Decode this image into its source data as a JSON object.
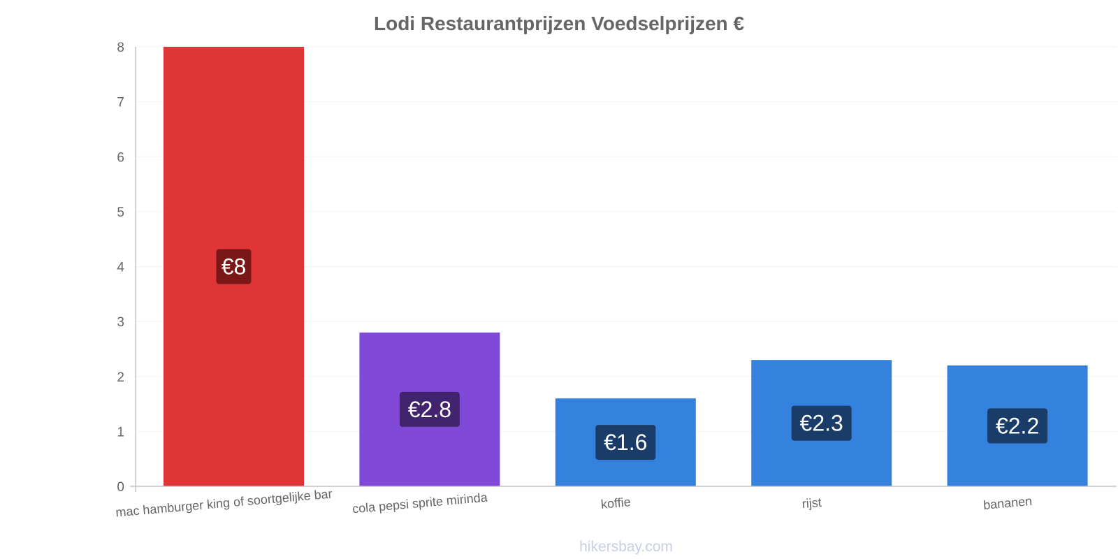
{
  "chart_data": {
    "type": "bar",
    "title": "Lodi Restaurantprijzen Voedselprijzen €",
    "categories": [
      "mac hamburger king of soortgelijke bar",
      "cola pepsi sprite mirinda",
      "koffie",
      "rijst",
      "bananen"
    ],
    "values": [
      8,
      2.8,
      1.6,
      2.3,
      2.2
    ],
    "value_labels": [
      "€8",
      "€2.8",
      "€1.6",
      "€2.3",
      "€2.2"
    ],
    "bar_colors": [
      "#e03536",
      "#8049d8",
      "#3581de",
      "#3581de",
      "#3581de"
    ],
    "label_bg_colors": [
      "#7a1818",
      "#42236e",
      "#1a3c68",
      "#1a3c68",
      "#1a3c68"
    ],
    "yticks": [
      "0",
      "1",
      "2",
      "3",
      "4",
      "5",
      "6",
      "7",
      "8"
    ],
    "ylim": [
      0,
      8
    ],
    "xlabel": "",
    "ylabel": "",
    "grid": true,
    "watermark": "hikersbay.com"
  }
}
